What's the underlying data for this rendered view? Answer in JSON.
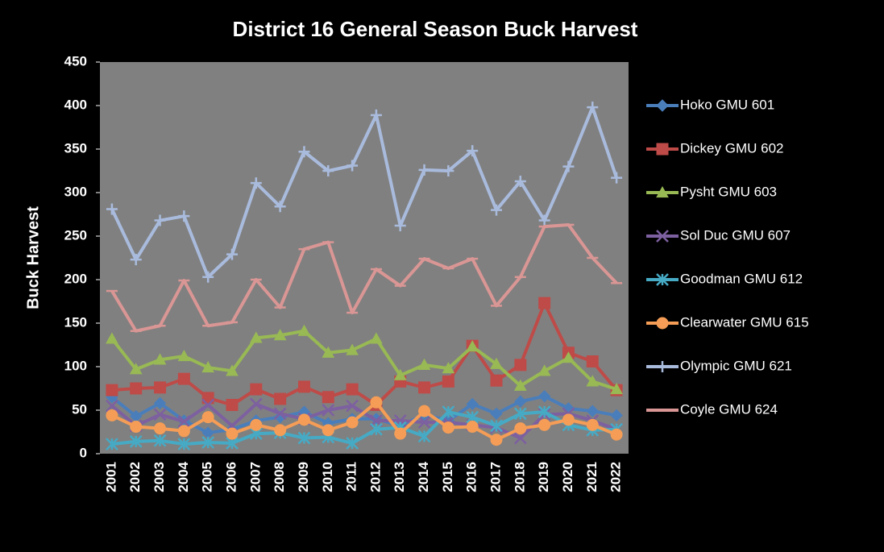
{
  "chart_data": {
    "type": "line",
    "title": "District 16 General Season Buck Harvest",
    "y_label": "Buck Harvest",
    "categories": [
      "2001",
      "2002",
      "2003",
      "2004",
      "2005",
      "2006",
      "2007",
      "2008",
      "2009",
      "2010",
      "2011",
      "2012",
      "2013",
      "2014",
      "2015",
      "2016",
      "2017",
      "2018",
      "2019",
      "2020",
      "2021",
      "2022"
    ],
    "ylim": [
      0,
      450
    ],
    "yticks": [
      0,
      50,
      100,
      150,
      200,
      250,
      300,
      350,
      400,
      450
    ],
    "grid": false,
    "legend": "right",
    "series": [
      {
        "name": "Hoko GMU 601",
        "color": "#4a7ebb",
        "marker": "diamond",
        "values": [
          65,
          43,
          58,
          38,
          24,
          28,
          38,
          42,
          48,
          35,
          40,
          40,
          32,
          45,
          38,
          57,
          46,
          60,
          66,
          52,
          49,
          44
        ]
      },
      {
        "name": "Dickey GMU 602",
        "color": "#be4b48",
        "marker": "square",
        "values": [
          73,
          75,
          76,
          86,
          64,
          56,
          74,
          63,
          77,
          65,
          74,
          56,
          83,
          76,
          83,
          124,
          84,
          102,
          173,
          116,
          106,
          73
        ]
      },
      {
        "name": "Pysht GMU 603",
        "color": "#98b954",
        "marker": "triangle",
        "values": [
          132,
          97,
          108,
          112,
          99,
          95,
          133,
          136,
          141,
          116,
          119,
          132,
          90,
          102,
          98,
          123,
          103,
          78,
          95,
          110,
          83,
          74
        ]
      },
      {
        "name": "Sol Duc GMU 607",
        "color": "#7d60a0",
        "marker": "x",
        "values": [
          55,
          32,
          45,
          37,
          56,
          32,
          57,
          46,
          40,
          50,
          55,
          38,
          38,
          36,
          36,
          33,
          30,
          18,
          45,
          46,
          38,
          28
        ]
      },
      {
        "name": "Goodman GMU 612",
        "color": "#46aac5",
        "marker": "star",
        "values": [
          11,
          14,
          15,
          11,
          13,
          12,
          23,
          24,
          18,
          19,
          12,
          28,
          30,
          20,
          48,
          42,
          32,
          46,
          48,
          33,
          27,
          28
        ]
      },
      {
        "name": "Clearwater GMU 615",
        "color": "#f59d56",
        "marker": "circle",
        "values": [
          44,
          31,
          29,
          26,
          42,
          23,
          33,
          27,
          39,
          27,
          36,
          59,
          23,
          49,
          30,
          31,
          16,
          29,
          33,
          39,
          33,
          22
        ]
      },
      {
        "name": "Olympic GMU 621",
        "color": "#a9bbdd",
        "marker": "plus",
        "values": [
          281,
          223,
          268,
          273,
          203,
          229,
          311,
          284,
          347,
          325,
          331,
          389,
          262,
          326,
          325,
          348,
          280,
          313,
          268,
          330,
          398,
          317
        ]
      },
      {
        "name": "Coyle GMU 624",
        "color": "#d99694",
        "marker": "dash",
        "values": [
          187,
          141,
          147,
          199,
          147,
          151,
          200,
          168,
          235,
          243,
          162,
          212,
          193,
          224,
          213,
          224,
          170,
          203,
          261,
          263,
          225,
          196
        ]
      }
    ]
  }
}
